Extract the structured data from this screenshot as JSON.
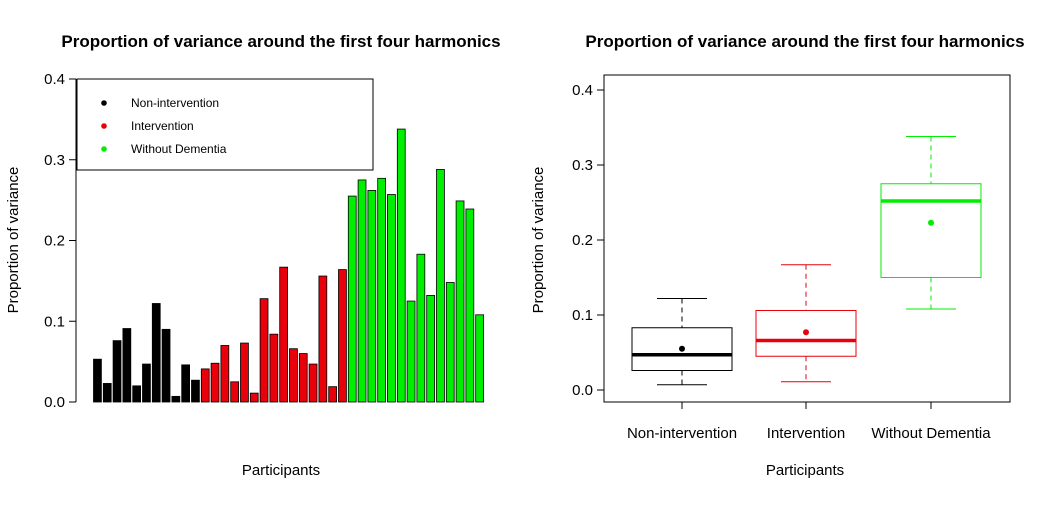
{
  "chart_data": [
    {
      "type": "bar",
      "title": "Proportion of variance around the first four harmonics",
      "xlabel": "Participants",
      "ylabel": "Proportion of variance",
      "ylim": [
        0,
        0.4
      ],
      "yticks": [
        "0.0",
        "0.1",
        "0.2",
        "0.3",
        "0.4"
      ],
      "legend": {
        "position": "top-left",
        "entries": [
          {
            "label": "Non-intervention",
            "color": "#000000"
          },
          {
            "label": "Intervention",
            "color": "#e8000b"
          },
          {
            "label": "Without Dementia",
            "color": "#00ee00"
          }
        ]
      },
      "series": [
        {
          "group": "Non-intervention",
          "color": "#000000",
          "values": [
            0.053,
            0.023,
            0.076,
            0.091,
            0.02,
            0.047,
            0.122,
            0.09,
            0.007,
            0.046,
            0.027
          ]
        },
        {
          "group": "Intervention",
          "color": "#e8000b",
          "values": [
            0.041,
            0.048,
            0.07,
            0.025,
            0.073,
            0.011,
            0.128,
            0.084,
            0.167,
            0.066,
            0.06,
            0.047,
            0.156,
            0.019,
            0.164
          ]
        },
        {
          "group": "Without Dementia",
          "color": "#00ee00",
          "values": [
            0.255,
            0.275,
            0.262,
            0.277,
            0.257,
            0.338,
            0.125,
            0.183,
            0.132,
            0.288,
            0.148,
            0.249,
            0.239,
            0.108
          ]
        }
      ]
    },
    {
      "type": "box",
      "title": "Proportion of variance around the first four harmonics",
      "xlabel": "Participants",
      "ylabel": "Proportion of variance",
      "ylim": [
        0,
        0.4
      ],
      "yticks": [
        "0.0",
        "0.1",
        "0.2",
        "0.3",
        "0.4"
      ],
      "categories": [
        "Non-intervention",
        "Intervention",
        "Without Dementia"
      ],
      "boxes": [
        {
          "category": "Non-intervention",
          "color": "#000000",
          "min": 0.007,
          "q1": 0.026,
          "median": 0.047,
          "q3": 0.083,
          "max": 0.122,
          "mean": 0.055
        },
        {
          "category": "Intervention",
          "color": "#e8000b",
          "min": 0.011,
          "q1": 0.045,
          "median": 0.066,
          "q3": 0.106,
          "max": 0.167,
          "mean": 0.077
        },
        {
          "category": "Without Dementia",
          "color": "#00ee00",
          "min": 0.108,
          "q1": 0.15,
          "median": 0.252,
          "q3": 0.275,
          "max": 0.338,
          "mean": 0.223
        }
      ]
    }
  ]
}
